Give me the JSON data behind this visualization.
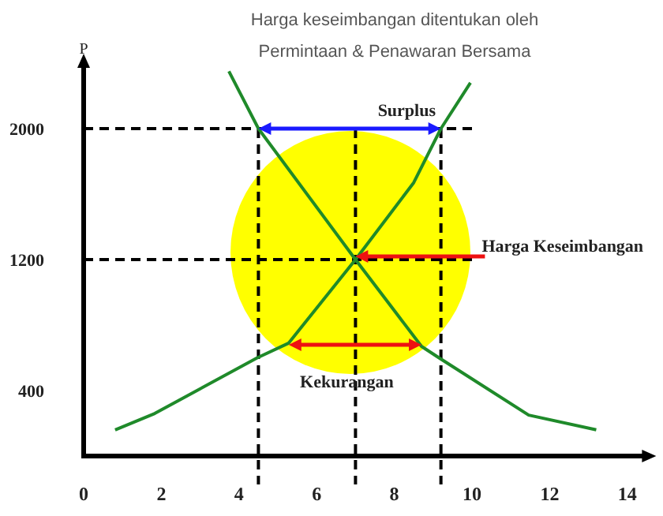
{
  "chart_data": {
    "type": "line",
    "title": "Harga keseimbangan ditentukan oleh",
    "subtitle": "Permintaan & Penawaran Bersama",
    "ylabel": "P",
    "xlim": [
      0,
      14.5
    ],
    "xticks": [
      0,
      2,
      4,
      6,
      8,
      10,
      12,
      14
    ],
    "ylim": [
      0,
      2400
    ],
    "yticks": [
      400,
      1200,
      2000
    ],
    "grid": false,
    "marker": "none",
    "line_style": "solid",
    "series": [
      {
        "color": "#1f8a2a",
        "x": [
          3.74,
          4.5,
          7,
          8.7,
          9.15,
          11.46,
          13.2
        ],
        "values": [
          2350,
          2000,
          1200,
          670,
          600,
          250,
          160
        ]
      },
      {
        "color": "#1f8a2a",
        "x": [
          0.81,
          1.83,
          4.47,
          5.28,
          7,
          8.5,
          9.2,
          9.96
        ],
        "values": [
          160,
          260,
          600,
          690,
          1200,
          1670,
          2000,
          2280
        ]
      }
    ],
    "ref_lines": [
      {
        "axis": "y",
        "value": 2000,
        "line_style": "dashed",
        "color": "#000000"
      },
      {
        "axis": "y",
        "value": 1200,
        "line_style": "dashed",
        "color": "#000000"
      },
      {
        "axis": "x",
        "value": 4.5,
        "line_style": "dashed",
        "color": "#000000"
      },
      {
        "axis": "x",
        "value": 7,
        "line_style": "dashed",
        "color": "#000000"
      },
      {
        "axis": "x",
        "value": 9.2,
        "line_style": "dashed",
        "color": "#000000"
      }
    ],
    "annotations": [
      {
        "text": "Surplus",
        "x": 9.2,
        "y": 2000
      },
      {
        "text": "Harga Keseimbangan",
        "x": 7,
        "y": 1200
      },
      {
        "text": "Kekurangan",
        "x": 8.7,
        "y": 680
      }
    ]
  }
}
